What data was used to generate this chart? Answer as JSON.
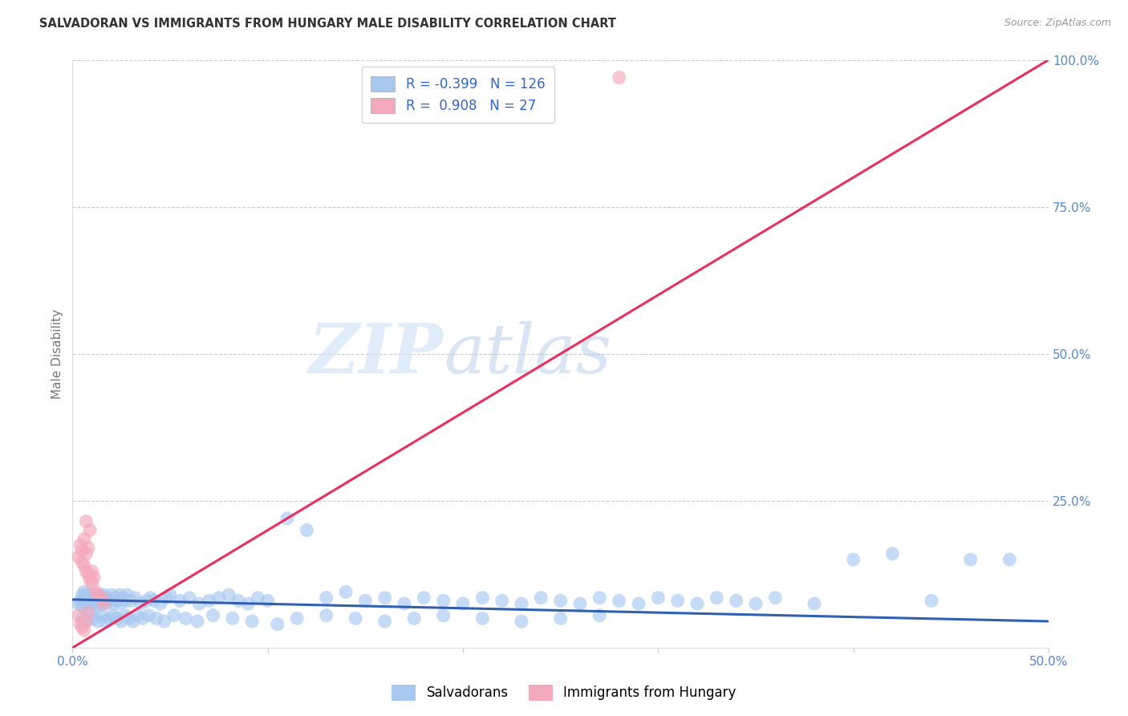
{
  "title": "SALVADORAN VS IMMIGRANTS FROM HUNGARY MALE DISABILITY CORRELATION CHART",
  "source": "Source: ZipAtlas.com",
  "ylabel": "Male Disability",
  "x_min": 0.0,
  "x_max": 0.5,
  "y_min": 0.0,
  "y_max": 1.0,
  "blue_R": -0.399,
  "blue_N": 126,
  "pink_R": 0.908,
  "pink_N": 27,
  "blue_color": "#a8c8f0",
  "pink_color": "#f4a8bc",
  "blue_line_color": "#3060b0",
  "pink_line_color": "#e83060",
  "legend_blue_label": "Salvadorans",
  "legend_pink_label": "Immigrants from Hungary",
  "watermark_zip": "ZIP",
  "watermark_atlas": "atlas",
  "blue_trend_x0": 0.0,
  "blue_trend_y0": 0.082,
  "blue_trend_x1": 0.5,
  "blue_trend_y1": 0.045,
  "pink_trend_x0": 0.0,
  "pink_trend_y0": 0.0,
  "pink_trend_x1": 0.5,
  "pink_trend_y1": 1.0,
  "blue_scatter_x": [
    0.003,
    0.004,
    0.005,
    0.005,
    0.006,
    0.006,
    0.006,
    0.007,
    0.007,
    0.008,
    0.008,
    0.009,
    0.009,
    0.01,
    0.01,
    0.011,
    0.011,
    0.012,
    0.012,
    0.013,
    0.013,
    0.014,
    0.014,
    0.015,
    0.015,
    0.016,
    0.016,
    0.017,
    0.018,
    0.019,
    0.02,
    0.021,
    0.022,
    0.023,
    0.024,
    0.025,
    0.026,
    0.027,
    0.028,
    0.03,
    0.032,
    0.035,
    0.038,
    0.04,
    0.042,
    0.045,
    0.048,
    0.05,
    0.055,
    0.06,
    0.065,
    0.07,
    0.075,
    0.08,
    0.085,
    0.09,
    0.095,
    0.1,
    0.11,
    0.12,
    0.13,
    0.14,
    0.15,
    0.16,
    0.17,
    0.18,
    0.19,
    0.2,
    0.21,
    0.22,
    0.23,
    0.24,
    0.25,
    0.26,
    0.27,
    0.28,
    0.29,
    0.3,
    0.31,
    0.32,
    0.33,
    0.34,
    0.35,
    0.36,
    0.38,
    0.4,
    0.42,
    0.44,
    0.46,
    0.48,
    0.005,
    0.007,
    0.009,
    0.011,
    0.013,
    0.015,
    0.017,
    0.019,
    0.021,
    0.023,
    0.025,
    0.027,
    0.029,
    0.031,
    0.033,
    0.036,
    0.039,
    0.043,
    0.047,
    0.052,
    0.058,
    0.064,
    0.072,
    0.082,
    0.092,
    0.105,
    0.115,
    0.13,
    0.145,
    0.16,
    0.175,
    0.19,
    0.21,
    0.23,
    0.25,
    0.27
  ],
  "blue_scatter_y": [
    0.075,
    0.08,
    0.09,
    0.07,
    0.085,
    0.075,
    0.095,
    0.08,
    0.09,
    0.075,
    0.085,
    0.08,
    0.09,
    0.075,
    0.085,
    0.08,
    0.09,
    0.075,
    0.085,
    0.07,
    0.085,
    0.08,
    0.09,
    0.075,
    0.085,
    0.08,
    0.09,
    0.075,
    0.085,
    0.08,
    0.09,
    0.075,
    0.085,
    0.08,
    0.09,
    0.075,
    0.085,
    0.08,
    0.09,
    0.08,
    0.085,
    0.075,
    0.08,
    0.085,
    0.08,
    0.075,
    0.085,
    0.09,
    0.08,
    0.085,
    0.075,
    0.08,
    0.085,
    0.09,
    0.08,
    0.075,
    0.085,
    0.08,
    0.22,
    0.2,
    0.085,
    0.095,
    0.08,
    0.085,
    0.075,
    0.085,
    0.08,
    0.075,
    0.085,
    0.08,
    0.075,
    0.085,
    0.08,
    0.075,
    0.085,
    0.08,
    0.075,
    0.085,
    0.08,
    0.075,
    0.085,
    0.08,
    0.075,
    0.085,
    0.075,
    0.15,
    0.16,
    0.08,
    0.15,
    0.15,
    0.05,
    0.045,
    0.055,
    0.05,
    0.045,
    0.055,
    0.045,
    0.05,
    0.055,
    0.05,
    0.045,
    0.055,
    0.05,
    0.045,
    0.055,
    0.05,
    0.055,
    0.05,
    0.045,
    0.055,
    0.05,
    0.045,
    0.055,
    0.05,
    0.045,
    0.04,
    0.05,
    0.055,
    0.05,
    0.045,
    0.05,
    0.055,
    0.05,
    0.045,
    0.05,
    0.055
  ],
  "pink_scatter_x": [
    0.003,
    0.004,
    0.005,
    0.005,
    0.006,
    0.006,
    0.007,
    0.007,
    0.008,
    0.008,
    0.009,
    0.009,
    0.01,
    0.01,
    0.011,
    0.012,
    0.013,
    0.015,
    0.016,
    0.003,
    0.004,
    0.005,
    0.006,
    0.007,
    0.008,
    0.28,
    0.007
  ],
  "pink_scatter_y": [
    0.155,
    0.175,
    0.165,
    0.145,
    0.185,
    0.14,
    0.16,
    0.13,
    0.17,
    0.125,
    0.2,
    0.115,
    0.11,
    0.13,
    0.12,
    0.095,
    0.09,
    0.085,
    0.075,
    0.055,
    0.04,
    0.035,
    0.03,
    0.045,
    0.06,
    0.97,
    0.215
  ]
}
